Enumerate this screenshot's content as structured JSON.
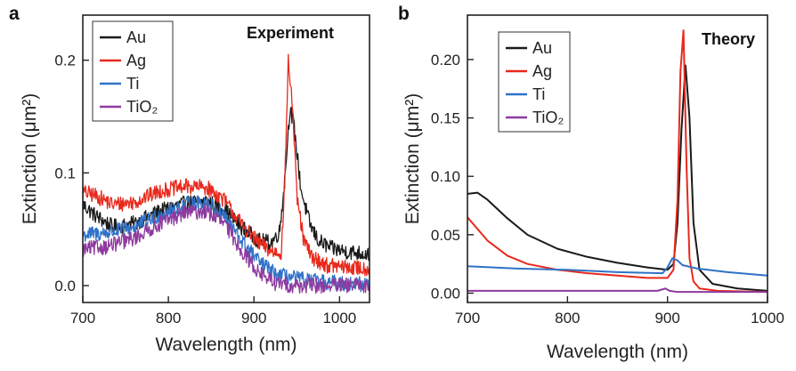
{
  "chart_data": [
    {
      "type": "line",
      "panel_label": "a",
      "title": "Experiment",
      "xlabel": "Wavelength (nm)",
      "ylabel": "Extinction (μm²)",
      "xlim": [
        700,
        1035
      ],
      "ylim": [
        -0.015,
        0.24
      ],
      "xticks": [
        700,
        800,
        900,
        1000
      ],
      "yticks": [
        0.0,
        0.1,
        0.2
      ],
      "ytick_labels": [
        "0.0",
        "0.1",
        "0.2"
      ],
      "legend_position": "top-left",
      "noise_amplitude": 0.007,
      "series": [
        {
          "name": "Au",
          "color": "#1a1a1a",
          "x": [
            700,
            715,
            735,
            760,
            790,
            820,
            845,
            865,
            885,
            905,
            920,
            930,
            936,
            942,
            947,
            955,
            965,
            975,
            990,
            1010,
            1035
          ],
          "y": [
            0.072,
            0.062,
            0.052,
            0.055,
            0.066,
            0.073,
            0.075,
            0.068,
            0.052,
            0.04,
            0.038,
            0.048,
            0.095,
            0.158,
            0.14,
            0.085,
            0.055,
            0.04,
            0.033,
            0.03,
            0.028
          ]
        },
        {
          "name": "Ag",
          "color": "#e8291c",
          "x": [
            700,
            715,
            735,
            760,
            790,
            820,
            845,
            865,
            885,
            905,
            920,
            932,
            936,
            940,
            945,
            950,
            958,
            968,
            985,
            1010,
            1035
          ],
          "y": [
            0.083,
            0.08,
            0.072,
            0.074,
            0.084,
            0.088,
            0.087,
            0.076,
            0.055,
            0.038,
            0.03,
            0.03,
            0.09,
            0.2,
            0.16,
            0.08,
            0.04,
            0.025,
            0.018,
            0.016,
            0.015
          ]
        },
        {
          "name": "Ti",
          "color": "#2f72c8",
          "x": [
            700,
            730,
            760,
            790,
            820,
            845,
            865,
            885,
            905,
            925,
            950,
            980,
            1010,
            1035
          ],
          "y": [
            0.045,
            0.047,
            0.052,
            0.063,
            0.072,
            0.074,
            0.063,
            0.04,
            0.022,
            0.01,
            0.006,
            0.003,
            0.002,
            0.001
          ]
        },
        {
          "name": "TiO₂",
          "color": "#8e3a9e",
          "x": [
            700,
            730,
            760,
            790,
            820,
            845,
            865,
            885,
            905,
            925,
            950,
            980,
            1010,
            1035
          ],
          "y": [
            0.032,
            0.035,
            0.042,
            0.055,
            0.065,
            0.066,
            0.055,
            0.032,
            0.012,
            0.002,
            0.0,
            0.0,
            0.0,
            0.0
          ]
        }
      ]
    },
    {
      "type": "line",
      "panel_label": "b",
      "title": "Theory",
      "xlabel": "Wavelength (nm)",
      "ylabel": "Extinction (μm²)",
      "xlim": [
        700,
        1000
      ],
      "ylim": [
        -0.008,
        0.238
      ],
      "xticks": [
        700,
        800,
        900,
        1000
      ],
      "yticks": [
        0.0,
        0.05,
        0.1,
        0.15,
        0.2
      ],
      "ytick_labels": [
        "0.00",
        "0.05",
        "0.10",
        "0.15",
        "0.20"
      ],
      "legend_position": "top-left",
      "series": [
        {
          "name": "Au",
          "color": "#1a1a1a",
          "x": [
            700,
            710,
            720,
            740,
            760,
            790,
            820,
            850,
            880,
            900,
            906,
            910,
            914,
            918,
            922,
            926,
            932,
            945,
            970,
            1000
          ],
          "y": [
            0.085,
            0.086,
            0.08,
            0.064,
            0.05,
            0.038,
            0.031,
            0.026,
            0.022,
            0.02,
            0.025,
            0.06,
            0.14,
            0.195,
            0.15,
            0.06,
            0.02,
            0.008,
            0.004,
            0.002
          ]
        },
        {
          "name": "Ag",
          "color": "#e8291c",
          "x": [
            700,
            720,
            740,
            760,
            790,
            820,
            850,
            880,
            900,
            906,
            910,
            913,
            916,
            919,
            922,
            926,
            932,
            950,
            1000
          ],
          "y": [
            0.065,
            0.045,
            0.032,
            0.025,
            0.02,
            0.017,
            0.015,
            0.013,
            0.013,
            0.02,
            0.08,
            0.19,
            0.225,
            0.11,
            0.03,
            0.01,
            0.004,
            0.002,
            0.001
          ]
        },
        {
          "name": "Ti",
          "color": "#2f72c8",
          "x": [
            700,
            750,
            800,
            850,
            895,
            900,
            905,
            910,
            915,
            930,
            960,
            1000
          ],
          "y": [
            0.023,
            0.021,
            0.02,
            0.018,
            0.017,
            0.022,
            0.03,
            0.028,
            0.024,
            0.021,
            0.018,
            0.015
          ]
        },
        {
          "name": "TiO₂",
          "color": "#8e3a9e",
          "x": [
            700,
            750,
            800,
            850,
            890,
            898,
            902,
            910,
            950,
            1000
          ],
          "y": [
            0.002,
            0.002,
            0.002,
            0.002,
            0.002,
            0.004,
            0.002,
            0.001,
            0.001,
            0.001
          ]
        }
      ]
    }
  ]
}
